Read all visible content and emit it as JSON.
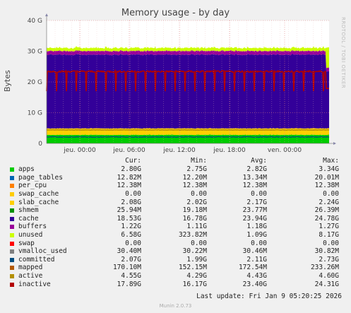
{
  "chart_data": {
    "type": "area",
    "title": "Memory usage - by day",
    "ylabel": "Bytes",
    "ylim": [
      0,
      40000000000
    ],
    "yticks": [
      {
        "value": 0,
        "label": "0"
      },
      {
        "value": 10000000000,
        "label": "10 G"
      },
      {
        "value": 20000000000,
        "label": "20 G"
      },
      {
        "value": 30000000000,
        "label": "30 G"
      },
      {
        "value": 40000000000,
        "label": "40 G"
      }
    ],
    "xticks": [
      "jeu. 00:00",
      "jeu. 06:00",
      "jeu. 12:00",
      "jeu. 18:00",
      "ven. 00:00"
    ],
    "grid": true,
    "side_label": "RRDTOOL / TOBI OETIKER",
    "columns": [
      "Cur:",
      "Min:",
      "Avg:",
      "Max:"
    ],
    "series": [
      {
        "name": "apps",
        "color": "#00cc00",
        "cur": "2.80G",
        "min": "2.75G",
        "avg": "2.82G",
        "max": "3.34G"
      },
      {
        "name": "page_tables",
        "color": "#0066b3",
        "cur": "12.82M",
        "min": "12.20M",
        "avg": "13.34M",
        "max": "20.01M"
      },
      {
        "name": "per_cpu",
        "color": "#ff8000",
        "cur": "12.38M",
        "min": "12.38M",
        "avg": "12.38M",
        "max": "12.38M"
      },
      {
        "name": "swap_cache",
        "color": "#ffcc00",
        "cur": "0.00",
        "min": "0.00",
        "avg": "0.00",
        "max": "0.00"
      },
      {
        "name": "slab_cache",
        "color": "#ffd000",
        "cur": "2.08G",
        "min": "2.02G",
        "avg": "2.17G",
        "max": "2.24G"
      },
      {
        "name": "shmem",
        "color": "#008f00",
        "cur": "25.94M",
        "min": "19.18M",
        "avg": "23.77M",
        "max": "26.39M"
      },
      {
        "name": "cache",
        "color": "#330099",
        "cur": "18.53G",
        "min": "16.78G",
        "avg": "23.94G",
        "max": "24.78G"
      },
      {
        "name": "buffers",
        "color": "#990099",
        "cur": "1.22G",
        "min": "1.11G",
        "avg": "1.18G",
        "max": "1.27G"
      },
      {
        "name": "unused",
        "color": "#ccff00",
        "cur": "6.58G",
        "min": "323.82M",
        "avg": "1.09G",
        "max": "8.17G"
      },
      {
        "name": "swap",
        "color": "#ff0000",
        "cur": "0.00",
        "min": "0.00",
        "avg": "0.00",
        "max": "0.00"
      },
      {
        "name": "vmalloc_used",
        "color": "#808080",
        "cur": "30.40M",
        "min": "30.22M",
        "avg": "30.46M",
        "max": "30.82M"
      },
      {
        "name": "committed",
        "color": "#004d80",
        "cur": "2.07G",
        "min": "1.99G",
        "avg": "2.11G",
        "max": "2.73G"
      },
      {
        "name": "mapped",
        "color": "#b35900",
        "cur": "170.10M",
        "min": "152.15M",
        "avg": "172.54M",
        "max": "233.26M"
      },
      {
        "name": "active",
        "color": "#b38f00",
        "cur": "4.55G",
        "min": "4.29G",
        "avg": "4.43G",
        "max": "4.60G"
      },
      {
        "name": "inactive",
        "color": "#b30000",
        "cur": "17.89G",
        "min": "16.17G",
        "avg": "23.40G",
        "max": "24.31G"
      }
    ],
    "stack_typical_gb": {
      "apps": 2.8,
      "slab_cache": 2.1,
      "cache": 24.0,
      "buffers": 1.2,
      "unused": 1.0,
      "committed": 2.1,
      "active": 4.4,
      "inactive": 23.4
    }
  },
  "footer": {
    "last_update": "Last update: Fri Jan  9 05:20:25 2026",
    "munin": "Munin 2.0.73"
  }
}
